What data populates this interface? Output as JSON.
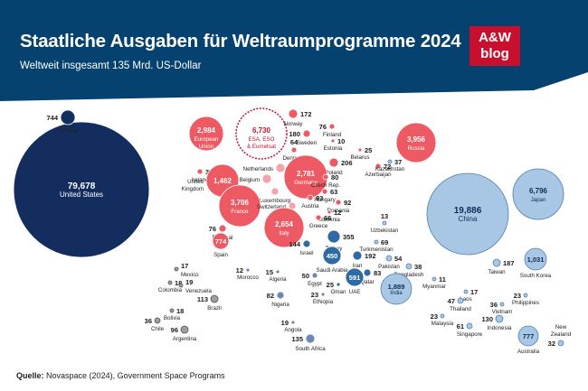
{
  "header": {
    "title": "Staatliche Ausgaben für Weltraumprogramme 2024",
    "subtitle": "Weltweit insgesamt 135 Mrd. US-Dollar",
    "logo_line1": "A&W",
    "logo_line2": "blog"
  },
  "source": {
    "label": "Quelle:",
    "text": "Novaspace (2024), Government Space Programs"
  },
  "colors": {
    "header": "#05426f",
    "america": "#142d5f",
    "europe": "#ee5a63",
    "europe_light": "#f6a3a8",
    "asia": "#a8c7e4",
    "middle_east": "#2f6aa3",
    "africa": "#6f87b6",
    "gray": "#9e9e9e"
  },
  "chart_data": {
    "type": "bubble",
    "title": "Staatliche Ausgaben für Weltraumprogramme 2024",
    "unit": "Mio. US-Dollar",
    "bubbles": [
      {
        "name": "United States",
        "value": "79,678",
        "region": "america"
      },
      {
        "name": "Canada",
        "value": "744",
        "region": "america"
      },
      {
        "name": "Mexico",
        "value": "17",
        "region": "latam"
      },
      {
        "name": "Colombia",
        "value": "18",
        "region": "latam"
      },
      {
        "name": "Venezuela",
        "value": "19",
        "region": "latam"
      },
      {
        "name": "Brazil",
        "value": "113",
        "region": "latam"
      },
      {
        "name": "Bolivia",
        "value": "18",
        "region": "latam"
      },
      {
        "name": "Chile",
        "value": "36",
        "region": "latam"
      },
      {
        "name": "Argentina",
        "value": "96",
        "region": "latam"
      },
      {
        "name": "European Union",
        "value": "2,984",
        "region": "europe"
      },
      {
        "name": "ESA, ESO & Eumetsat",
        "value": "6,730",
        "region": "europe_org"
      },
      {
        "name": "Norway",
        "value": "172",
        "region": "europe"
      },
      {
        "name": "Sweden",
        "value": "180",
        "region": "europe"
      },
      {
        "name": "Finland",
        "value": "76",
        "region": "europe"
      },
      {
        "name": "Estonia",
        "value": "10",
        "region": "europe"
      },
      {
        "name": "Belarus",
        "value": "25",
        "region": "europe"
      },
      {
        "name": "Russia",
        "value": "3,956",
        "region": "europe"
      },
      {
        "name": "Denmark",
        "value": "64",
        "region": "europe"
      },
      {
        "name": "Poland",
        "value": "206",
        "region": "europe"
      },
      {
        "name": "Azerbaijan",
        "value": "72",
        "region": "europe"
      },
      {
        "name": "Ireland",
        "value": "37",
        "region": "europe"
      },
      {
        "name": "Netherlands",
        "value": "",
        "region": "europe"
      },
      {
        "name": "Germany",
        "value": "2,781",
        "region": "europe"
      },
      {
        "name": "Czech Rep.",
        "value": "80",
        "region": "europe"
      },
      {
        "name": "Kazakhstan",
        "value": "37",
        "region": "asia"
      },
      {
        "name": "United Kingdom",
        "value": "1,462",
        "region": "europe"
      },
      {
        "name": "Belgium",
        "value": "",
        "region": "europe"
      },
      {
        "name": "Hungary",
        "value": "63",
        "region": "europe"
      },
      {
        "name": "Luxembourg",
        "value": "",
        "region": "europe"
      },
      {
        "name": "Austria",
        "value": "93",
        "region": "europe"
      },
      {
        "name": "Romania",
        "value": "92",
        "region": "europe"
      },
      {
        "name": "France",
        "value": "3,706",
        "region": "europe"
      },
      {
        "name": "Switzerland",
        "value": "",
        "region": "europe"
      },
      {
        "name": "Slovenia",
        "value": "12",
        "region": "europe"
      },
      {
        "name": "Greece",
        "value": "66",
        "region": "europe"
      },
      {
        "name": "Uzbekistan",
        "value": "13",
        "region": "asia"
      },
      {
        "name": "Portugal",
        "value": "76",
        "region": "europe"
      },
      {
        "name": "Italy",
        "value": "2,654",
        "region": "europe"
      },
      {
        "name": "Spain",
        "value": "774",
        "region": "europe"
      },
      {
        "name": "Israel",
        "value": "144",
        "region": "middle_east"
      },
      {
        "name": "Turkey",
        "value": "355",
        "region": "middle_east"
      },
      {
        "name": "Turkmenistan",
        "value": "69",
        "region": "asia"
      },
      {
        "name": "Saudi Arabia",
        "value": "450",
        "region": "middle_east"
      },
      {
        "name": "Iran",
        "value": "192",
        "region": "middle_east"
      },
      {
        "name": "Pakistan",
        "value": "54",
        "region": "asia"
      },
      {
        "name": "Bangladesh",
        "value": "38",
        "region": "asia"
      },
      {
        "name": "Morocco",
        "value": "12",
        "region": "africa"
      },
      {
        "name": "Algeria",
        "value": "15",
        "region": "africa"
      },
      {
        "name": "Egypt",
        "value": "50",
        "region": "africa"
      },
      {
        "name": "Qatar",
        "value": "83",
        "region": "middle_east"
      },
      {
        "name": "UAE",
        "value": "591",
        "region": "middle_east"
      },
      {
        "name": "Oman",
        "value": "25",
        "region": "middle_east"
      },
      {
        "name": "Nigeria",
        "value": "82",
        "region": "africa"
      },
      {
        "name": "Ethiopia",
        "value": "23",
        "region": "africa"
      },
      {
        "name": "Angola",
        "value": "19",
        "region": "africa"
      },
      {
        "name": "South Africa",
        "value": "135",
        "region": "africa"
      },
      {
        "name": "China",
        "value": "19,886",
        "region": "asia"
      },
      {
        "name": "Japan",
        "value": "6,796",
        "region": "asia"
      },
      {
        "name": "Taiwan",
        "value": "187",
        "region": "asia"
      },
      {
        "name": "South Korea",
        "value": "1,031",
        "region": "asia"
      },
      {
        "name": "India",
        "value": "1,889",
        "region": "asia"
      },
      {
        "name": "Myanmar",
        "value": "11",
        "region": "asia"
      },
      {
        "name": "Laos",
        "value": "17",
        "region": "asia"
      },
      {
        "name": "Thailand",
        "value": "47",
        "region": "asia"
      },
      {
        "name": "Vietnam",
        "value": "36",
        "region": "asia"
      },
      {
        "name": "Philippines",
        "value": "23",
        "region": "asia"
      },
      {
        "name": "Malaysia",
        "value": "23",
        "region": "asia"
      },
      {
        "name": "Singapore",
        "value": "61",
        "region": "asia"
      },
      {
        "name": "Indonesia",
        "value": "130",
        "region": "asia"
      },
      {
        "name": "Australia",
        "value": "777",
        "region": "asia"
      },
      {
        "name": "New Zealand",
        "value": "32",
        "region": "asia"
      }
    ]
  }
}
